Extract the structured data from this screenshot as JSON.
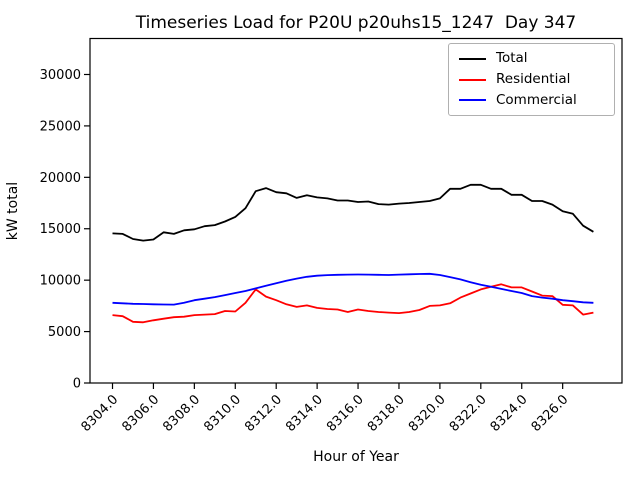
{
  "figure": {
    "background": "#ffffff",
    "spine_color": "#000000"
  },
  "chart_data": {
    "type": "line",
    "title": "Timeseries Load for P20U p20uhs15_1247  Day 347",
    "xlabel": "Hour of Year",
    "ylabel": "kW total",
    "xlim": [
      8302.9,
      8328.9
    ],
    "ylim": [
      0,
      33500
    ],
    "grid": false,
    "legend_position": "upper right",
    "xtick_labels": [
      "8304.0",
      "8306.0",
      "8308.0",
      "8310.0",
      "8312.0",
      "8314.0",
      "8316.0",
      "8318.0",
      "8320.0",
      "8322.0",
      "8324.0",
      "8326.0"
    ],
    "xtick_values": [
      8304,
      8306,
      8308,
      8310,
      8312,
      8314,
      8316,
      8318,
      8320,
      8322,
      8324,
      8326
    ],
    "ytick_labels": [
      "0",
      "5000",
      "10000",
      "15000",
      "20000",
      "25000",
      "30000"
    ],
    "ytick_values": [
      0,
      5000,
      10000,
      15000,
      20000,
      25000,
      30000
    ],
    "x": [
      8304.0,
      8304.5,
      8305.0,
      8305.5,
      8306.0,
      8306.5,
      8307.0,
      8307.5,
      8308.0,
      8308.5,
      8309.0,
      8309.5,
      8310.0,
      8310.5,
      8311.0,
      8311.5,
      8312.0,
      8312.5,
      8313.0,
      8313.5,
      8314.0,
      8314.5,
      8315.0,
      8315.5,
      8316.0,
      8316.5,
      8317.0,
      8317.5,
      8318.0,
      8318.5,
      8319.0,
      8319.5,
      8320.0,
      8320.5,
      8321.0,
      8321.5,
      8322.0,
      8322.5,
      8323.0,
      8323.5,
      8324.0,
      8324.5,
      8325.0,
      8325.5,
      8326.0,
      8326.5,
      8327.0,
      8327.5
    ],
    "series": [
      {
        "name": "Total",
        "color": "#000000",
        "values": [
          14550,
          14500,
          14000,
          13850,
          13950,
          14650,
          14500,
          14850,
          14950,
          15250,
          15350,
          15700,
          16150,
          17000,
          18650,
          18950,
          18550,
          18450,
          18000,
          18250,
          18050,
          17950,
          17750,
          17750,
          17600,
          17650,
          17400,
          17350,
          17450,
          17500,
          17600,
          17700,
          17950,
          18880,
          18880,
          19270,
          19270,
          18880,
          18880,
          18300,
          18300,
          17700,
          17700,
          17350,
          16700,
          16450,
          15300,
          14700
        ]
      },
      {
        "name": "Residential",
        "color": "#ff0000",
        "values": [
          6600,
          6500,
          5950,
          5900,
          6100,
          6250,
          6400,
          6450,
          6600,
          6650,
          6700,
          7000,
          6950,
          7800,
          9100,
          8400,
          8050,
          7650,
          7400,
          7550,
          7300,
          7200,
          7150,
          6900,
          7150,
          7000,
          6900,
          6850,
          6800,
          6900,
          7100,
          7500,
          7550,
          7750,
          8300,
          8700,
          9100,
          9350,
          9600,
          9300,
          9300,
          8900,
          8500,
          8450,
          7600,
          7550,
          6650,
          6850
        ]
      },
      {
        "name": "Commercial",
        "color": "#0000ff",
        "values": [
          7800,
          7750,
          7700,
          7680,
          7650,
          7630,
          7620,
          7800,
          8050,
          8200,
          8350,
          8550,
          8750,
          8950,
          9200,
          9450,
          9700,
          9950,
          10150,
          10330,
          10430,
          10490,
          10520,
          10540,
          10550,
          10540,
          10520,
          10500,
          10540,
          10570,
          10600,
          10620,
          10500,
          10300,
          10070,
          9800,
          9550,
          9360,
          9150,
          8950,
          8750,
          8450,
          8300,
          8200,
          8050,
          7950,
          7850,
          7800
        ]
      }
    ]
  }
}
